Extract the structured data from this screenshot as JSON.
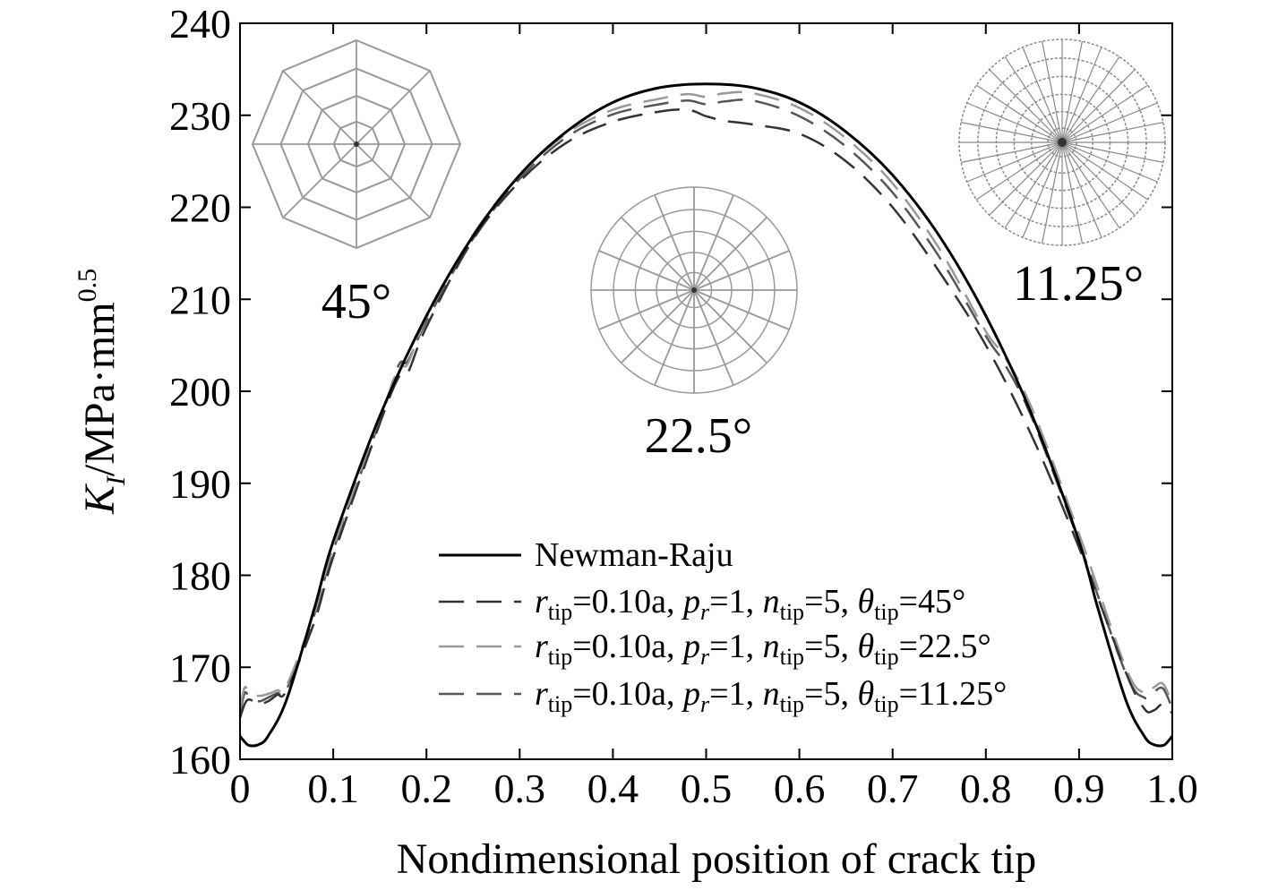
{
  "chart_data": {
    "type": "line",
    "xlabel": "Nondimensional position of crack tip",
    "ylabel_main": "K",
    "ylabel_sub": "I",
    "ylabel_rest": "/MPa·mm",
    "ylabel_sup": "0.5",
    "xlim": [
      0,
      1.0
    ],
    "ylim": [
      160,
      240
    ],
    "xticks": [
      "0",
      "0.1",
      "0.2",
      "0.3",
      "0.4",
      "0.5",
      "0.6",
      "0.7",
      "0.8",
      "0.9",
      "1.0"
    ],
    "yticks": [
      "160",
      "170",
      "180",
      "190",
      "200",
      "210",
      "220",
      "230",
      "240"
    ],
    "grid": false,
    "legend_placement": "bottom-center",
    "series": [
      {
        "name": "Newman-Raju",
        "color": "#000000",
        "dash": "solid",
        "x": [
          0,
          0.005,
          0.01,
          0.02,
          0.03,
          0.05,
          0.08,
          0.1,
          0.15,
          0.2,
          0.25,
          0.3,
          0.35,
          0.4,
          0.45,
          0.5,
          0.55,
          0.6,
          0.65,
          0.7,
          0.75,
          0.8,
          0.85,
          0.9,
          0.92,
          0.95,
          0.97,
          0.98,
          0.99,
          0.995,
          1.0
        ],
        "y": [
          162.5,
          161.9,
          161.5,
          161.6,
          162.5,
          166.5,
          176.5,
          183.7,
          197.3,
          208.2,
          216.9,
          223.5,
          228.2,
          231.4,
          233.0,
          233.4,
          233.0,
          231.4,
          228.2,
          223.5,
          216.9,
          208.2,
          197.3,
          183.7,
          176.5,
          166.5,
          162.5,
          161.6,
          161.5,
          161.9,
          162.5
        ]
      },
      {
        "name": "r_tip=0.10a, p_r=1, n_tip=5, θ_tip=45°",
        "color": "#333333",
        "dash": "28,14",
        "x": [
          0,
          0.005,
          0.01,
          0.02,
          0.03,
          0.04,
          0.05,
          0.08,
          0.1,
          0.15,
          0.17,
          0.18,
          0.2,
          0.25,
          0.3,
          0.35,
          0.4,
          0.45,
          0.48,
          0.5,
          0.52,
          0.55,
          0.6,
          0.65,
          0.7,
          0.75,
          0.8,
          0.85,
          0.9,
          0.95,
          0.97,
          0.98,
          0.99,
          1.0
        ],
        "y": [
          164.5,
          166.0,
          166.5,
          166.0,
          166.3,
          167.0,
          167.5,
          175.0,
          182.0,
          196.5,
          201.5,
          202.0,
          207.0,
          216.5,
          222.8,
          227.0,
          229.3,
          230.4,
          230.6,
          229.9,
          229.4,
          229.0,
          228.0,
          225.0,
          220.0,
          213.0,
          205.0,
          195.0,
          183.0,
          169.5,
          165.5,
          165.3,
          166.0,
          165.0
        ]
      },
      {
        "name": "r_tip=0.10a, p_r=1, n_tip=5, θ_tip=22.5°",
        "color": "#999999",
        "dash": "28,14",
        "x": [
          0,
          0.005,
          0.01,
          0.02,
          0.03,
          0.04,
          0.05,
          0.08,
          0.1,
          0.15,
          0.17,
          0.18,
          0.2,
          0.25,
          0.3,
          0.35,
          0.4,
          0.45,
          0.48,
          0.5,
          0.52,
          0.55,
          0.6,
          0.65,
          0.7,
          0.75,
          0.8,
          0.82,
          0.85,
          0.9,
          0.95,
          0.97,
          0.98,
          0.99,
          1.0
        ],
        "y": [
          165.5,
          167.8,
          167.3,
          166.9,
          167.1,
          167.5,
          168.0,
          176.0,
          183.0,
          197.0,
          202.5,
          203.0,
          208.0,
          217.0,
          223.5,
          228.0,
          230.6,
          231.8,
          232.3,
          232.0,
          232.4,
          232.4,
          230.8,
          227.5,
          222.6,
          215.5,
          206.5,
          203.8,
          198.0,
          184.5,
          170.0,
          167.2,
          167.8,
          168.2,
          166.0
        ]
      },
      {
        "name": "r_tip=0.10a, p_r=1, n_tip=5, θ_tip=11.25°",
        "color": "#555555",
        "dash": "28,14",
        "x": [
          0,
          0.005,
          0.01,
          0.02,
          0.03,
          0.04,
          0.05,
          0.08,
          0.1,
          0.15,
          0.17,
          0.18,
          0.2,
          0.25,
          0.3,
          0.35,
          0.4,
          0.45,
          0.48,
          0.5,
          0.52,
          0.55,
          0.6,
          0.65,
          0.7,
          0.75,
          0.8,
          0.82,
          0.85,
          0.9,
          0.95,
          0.97,
          0.98,
          0.99,
          1.0
        ],
        "y": [
          165.0,
          167.2,
          166.8,
          166.3,
          166.7,
          167.2,
          167.6,
          175.8,
          182.7,
          196.8,
          202.8,
          203.3,
          207.6,
          216.6,
          223.1,
          227.6,
          230.1,
          231.2,
          231.6,
          231.2,
          231.5,
          231.6,
          229.9,
          226.6,
          221.6,
          214.6,
          206.0,
          203.0,
          197.0,
          183.6,
          169.4,
          166.7,
          167.3,
          167.7,
          165.5
        ]
      }
    ],
    "insets": [
      {
        "label": "45°",
        "sectors": 8,
        "rings": 4,
        "line_color": "#999999",
        "position": "top-left"
      },
      {
        "label": "22.5°",
        "sectors": 16,
        "rings": 5,
        "line_color": "#999999",
        "position": "top-center"
      },
      {
        "label": "11.25°",
        "sectors": 32,
        "rings": 6,
        "line_color": "#888888",
        "position": "top-right"
      }
    ],
    "legend": [
      {
        "series": 0,
        "parts": [
          {
            "t": "Newman-Raju"
          }
        ]
      },
      {
        "series": 1,
        "parts": [
          {
            "t": "r",
            "style": "italic"
          },
          {
            "t": "tip",
            "style": "sub"
          },
          {
            "t": "=0.10a, "
          },
          {
            "t": "p",
            "style": "italic"
          },
          {
            "t": "r",
            "style": "italic-sub"
          },
          {
            "t": "=1, "
          },
          {
            "t": "n",
            "style": "italic"
          },
          {
            "t": "tip",
            "style": "sub"
          },
          {
            "t": "=5, "
          },
          {
            "t": "θ",
            "style": "italic"
          },
          {
            "t": "tip",
            "style": "sub"
          },
          {
            "t": "=45°"
          }
        ]
      },
      {
        "series": 2,
        "parts": [
          {
            "t": "r",
            "style": "italic"
          },
          {
            "t": "tip",
            "style": "sub"
          },
          {
            "t": "=0.10a, "
          },
          {
            "t": "p",
            "style": "italic"
          },
          {
            "t": "r",
            "style": "italic-sub"
          },
          {
            "t": "=1, "
          },
          {
            "t": "n",
            "style": "italic"
          },
          {
            "t": "tip",
            "style": "sub"
          },
          {
            "t": "=5, "
          },
          {
            "t": "θ",
            "style": "italic"
          },
          {
            "t": "tip",
            "style": "sub"
          },
          {
            "t": "=22.5°"
          }
        ]
      },
      {
        "series": 3,
        "parts": [
          {
            "t": "r",
            "style": "italic"
          },
          {
            "t": "tip",
            "style": "sub"
          },
          {
            "t": "=0.10a, "
          },
          {
            "t": "p",
            "style": "italic"
          },
          {
            "t": "r",
            "style": "italic-sub"
          },
          {
            "t": "=1, "
          },
          {
            "t": "n",
            "style": "italic"
          },
          {
            "t": "tip",
            "style": "sub"
          },
          {
            "t": "=5, "
          },
          {
            "t": "θ",
            "style": "italic"
          },
          {
            "t": "tip",
            "style": "sub"
          },
          {
            "t": "=11.25°"
          }
        ]
      }
    ]
  }
}
